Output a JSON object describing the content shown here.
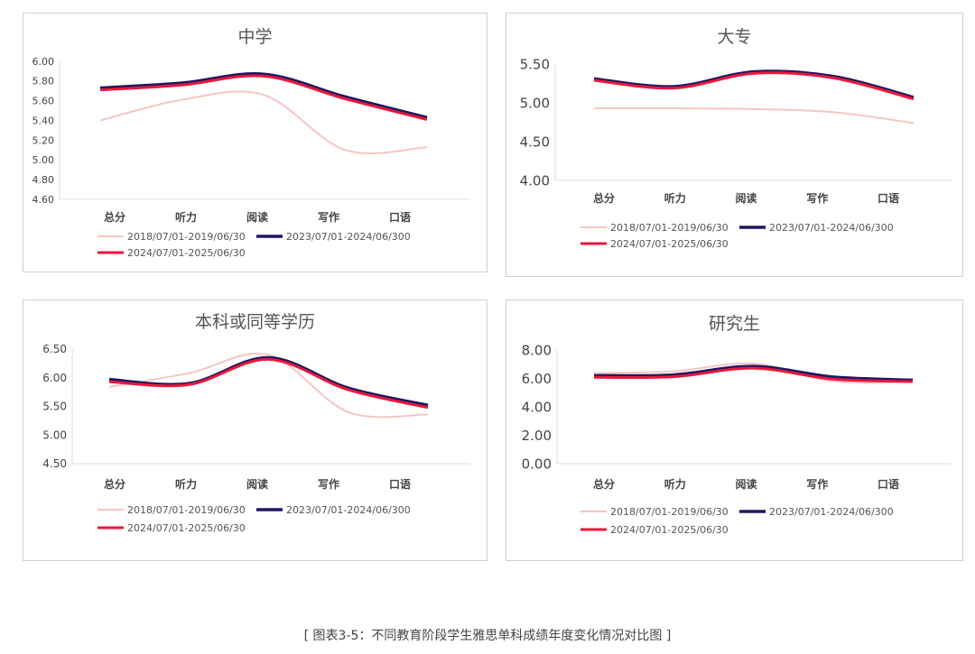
{
  "caption": "[ 图表3-5：不同教育阶段学生雅思单科成绩年度变化情况对比图 ]",
  "colors": {
    "s2018": "#f6c4c4",
    "s2023": "#1f1760",
    "s2024": "#e8183c"
  },
  "chart_data": [
    {
      "type": "line",
      "title": "中学",
      "categories": [
        "总分",
        "听力",
        "阅读",
        "写作",
        "口语"
      ],
      "ylim": [
        4.6,
        6.0
      ],
      "yticks": [
        "6.00",
        "5.80",
        "5.60",
        "5.40",
        "5.20",
        "5.00",
        "4.80",
        "4.60"
      ],
      "legend": "bottom",
      "series": [
        {
          "name": "2018/07/01-2019/06/30",
          "values": [
            5.4,
            5.61,
            5.66,
            5.1,
            5.13
          ]
        },
        {
          "name": "2023/07/01-2024/06/300",
          "values": [
            5.73,
            5.78,
            5.87,
            5.64,
            5.43
          ]
        },
        {
          "name": "2024/07/01-2025/06/30",
          "values": [
            5.71,
            5.76,
            5.85,
            5.62,
            5.41
          ]
        }
      ]
    },
    {
      "type": "line",
      "title": "大专",
      "categories": [
        "总分",
        "听力",
        "阅读",
        "写作",
        "口语"
      ],
      "ylim": [
        4.0,
        5.5
      ],
      "yticks": [
        "5.50",
        "5.00",
        "4.50",
        "4.00"
      ],
      "legend": "bottom",
      "series": [
        {
          "name": "2018/07/01-2019/06/30",
          "values": [
            4.93,
            4.93,
            4.92,
            4.88,
            4.74
          ]
        },
        {
          "name": "2023/07/01-2024/06/300",
          "values": [
            5.31,
            5.21,
            5.4,
            5.34,
            5.07
          ]
        },
        {
          "name": "2024/07/01-2025/06/30",
          "values": [
            5.29,
            5.19,
            5.38,
            5.32,
            5.05
          ]
        }
      ]
    },
    {
      "type": "line",
      "title": "本科或同等学历",
      "categories": [
        "总分",
        "听力",
        "阅读",
        "写作",
        "口语"
      ],
      "ylim": [
        4.5,
        6.5
      ],
      "yticks": [
        "6.50",
        "6.00",
        "5.50",
        "5.00",
        "4.50"
      ],
      "legend": "bottom",
      "series": [
        {
          "name": "2018/07/01-2019/06/30",
          "values": [
            5.84,
            6.08,
            6.4,
            5.4,
            5.36
          ]
        },
        {
          "name": "2023/07/01-2024/06/300",
          "values": [
            5.97,
            5.9,
            6.35,
            5.82,
            5.52
          ]
        },
        {
          "name": "2024/07/01-2025/06/30",
          "values": [
            5.93,
            5.88,
            6.32,
            5.79,
            5.48
          ]
        }
      ]
    },
    {
      "type": "line",
      "title": "研究生",
      "categories": [
        "总分",
        "听力",
        "阅读",
        "写作",
        "口语"
      ],
      "ylim": [
        0,
        8
      ],
      "yticks": [
        "8.00",
        "6.00",
        "4.00",
        "2.00",
        "0.00"
      ],
      "legend": "bottom",
      "series": [
        {
          "name": "2018/07/01-2019/06/30",
          "values": [
            6.38,
            6.5,
            7.05,
            5.8,
            5.78
          ]
        },
        {
          "name": "2023/07/01-2024/06/300",
          "values": [
            6.2,
            6.25,
            6.85,
            6.1,
            5.88
          ]
        },
        {
          "name": "2024/07/01-2025/06/30",
          "values": [
            6.08,
            6.12,
            6.72,
            5.95,
            5.78
          ]
        }
      ]
    }
  ]
}
